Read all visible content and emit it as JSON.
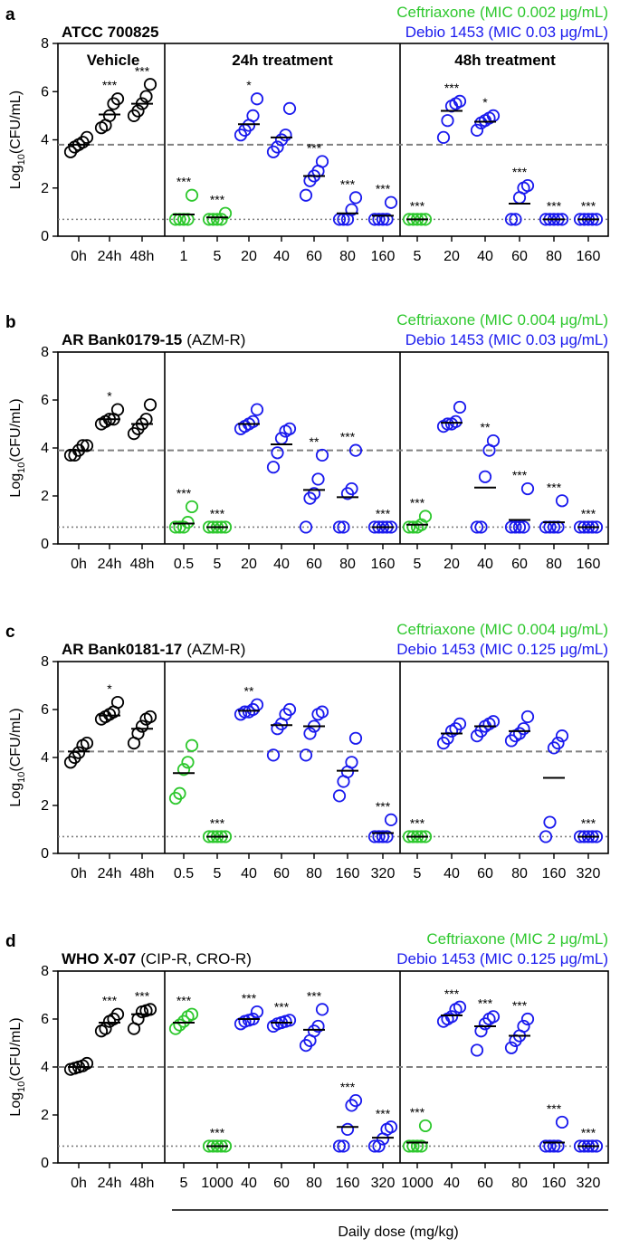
{
  "chart_data": [
    {
      "type": "scatter",
      "panel": "a",
      "strain": "ATCC 700825",
      "strain_note": "",
      "ylabel": "Log10(CFU/mL)",
      "ylim": [
        0,
        8
      ],
      "yticks": [
        "0",
        "2",
        "4",
        "6",
        "8"
      ],
      "legend": [
        "Ceftriaxone (MIC 0.002 μg/mL)",
        "Debio 1453 (MIC 0.03 μg/mL)"
      ],
      "groups": [
        "Vehicle",
        "24h treatment",
        "48h treatment"
      ],
      "baseline": 3.8,
      "lod": 0.7,
      "categories": [
        {
          "label": "0h",
          "series": "vehicle",
          "values": [
            3.5,
            3.7,
            3.8,
            3.9,
            4.1
          ],
          "mean": 3.8,
          "sig": ""
        },
        {
          "label": "24h",
          "series": "vehicle",
          "values": [
            4.5,
            4.6,
            5.0,
            5.5,
            5.7
          ],
          "mean": 5.05,
          "sig": "***"
        },
        {
          "label": "48h",
          "series": "vehicle",
          "values": [
            5.0,
            5.2,
            5.5,
            5.8,
            6.3
          ],
          "mean": 5.5,
          "sig": "***"
        },
        {
          "label": "1",
          "series": "ceftriaxone",
          "values": [
            0.7,
            0.7,
            0.7,
            0.7,
            1.7
          ],
          "mean": 0.9,
          "sig": "***"
        },
        {
          "label": "5",
          "series": "ceftriaxone",
          "values": [
            0.7,
            0.7,
            0.7,
            0.7,
            0.95
          ],
          "mean": 0.78,
          "sig": "***"
        },
        {
          "label": "20",
          "series": "debio",
          "values": [
            4.2,
            4.4,
            4.6,
            5.0,
            5.7
          ],
          "mean": 4.65,
          "sig": "*"
        },
        {
          "label": "40",
          "series": "debio",
          "values": [
            3.5,
            3.7,
            4.0,
            4.2,
            5.3
          ],
          "mean": 4.1,
          "sig": ""
        },
        {
          "label": "60",
          "series": "debio",
          "values": [
            1.7,
            2.3,
            2.5,
            2.7,
            3.1
          ],
          "mean": 2.5,
          "sig": "***"
        },
        {
          "label": "80",
          "series": "debio",
          "values": [
            0.7,
            0.7,
            0.7,
            1.1,
            1.6
          ],
          "mean": 0.95,
          "sig": "***"
        },
        {
          "label": "160",
          "series": "debio",
          "values": [
            0.7,
            0.7,
            0.7,
            0.7,
            1.4
          ],
          "mean": 0.85,
          "sig": "***"
        },
        {
          "label": "5",
          "series": "ceftriaxone",
          "values": [
            0.7,
            0.7,
            0.7,
            0.7,
            0.7
          ],
          "mean": 0.7,
          "sig": "***"
        },
        {
          "label": "20",
          "series": "debio",
          "values": [
            4.1,
            4.8,
            5.4,
            5.5,
            5.6
          ],
          "mean": 5.2,
          "sig": "***"
        },
        {
          "label": "40",
          "series": "debio",
          "values": [
            4.4,
            4.7,
            4.8,
            4.9,
            5.0
          ],
          "mean": 4.75,
          "sig": "*"
        },
        {
          "label": "60",
          "series": "debio",
          "values": [
            0.7,
            0.7,
            1.6,
            2.0,
            2.1
          ],
          "mean": 1.35,
          "sig": "***"
        },
        {
          "label": "80",
          "series": "debio",
          "values": [
            0.7,
            0.7,
            0.7,
            0.7,
            0.7
          ],
          "mean": 0.7,
          "sig": "***"
        },
        {
          "label": "160",
          "series": "debio",
          "values": [
            0.7,
            0.7,
            0.7,
            0.7,
            0.7
          ],
          "mean": 0.7,
          "sig": "***"
        }
      ]
    },
    {
      "type": "scatter",
      "panel": "b",
      "strain": "AR  Bank0179-15",
      "strain_note": "(AZM-R)",
      "ylabel": "Log10(CFU/mL)",
      "ylim": [
        0,
        8
      ],
      "yticks": [
        "0",
        "2",
        "4",
        "6",
        "8"
      ],
      "legend": [
        "Ceftriaxone (MIC 0.004 μg/mL)",
        "Debio 1453 (MIC 0.03 μg/mL)"
      ],
      "groups": [
        "",
        "",
        ""
      ],
      "baseline": 3.9,
      "lod": 0.7,
      "categories": [
        {
          "label": "0h",
          "series": "vehicle",
          "values": [
            3.7,
            3.7,
            3.9,
            4.1,
            4.1
          ],
          "mean": 3.9,
          "sig": ""
        },
        {
          "label": "24h",
          "series": "vehicle",
          "values": [
            5.0,
            5.1,
            5.2,
            5.2,
            5.6
          ],
          "mean": 5.2,
          "sig": "*"
        },
        {
          "label": "48h",
          "series": "vehicle",
          "values": [
            4.6,
            4.8,
            5.0,
            5.2,
            5.8
          ],
          "mean": 5.0,
          "sig": ""
        },
        {
          "label": "0.5",
          "series": "ceftriaxone",
          "values": [
            0.7,
            0.7,
            0.7,
            0.9,
            1.55
          ],
          "mean": 0.85,
          "sig": "***"
        },
        {
          "label": "5",
          "series": "ceftriaxone",
          "values": [
            0.7,
            0.7,
            0.7,
            0.7,
            0.7
          ],
          "mean": 0.7,
          "sig": "***"
        },
        {
          "label": "20",
          "series": "debio",
          "values": [
            4.8,
            4.9,
            5.0,
            5.1,
            5.6
          ],
          "mean": 5.0,
          "sig": ""
        },
        {
          "label": "40",
          "series": "debio",
          "values": [
            3.2,
            3.8,
            4.4,
            4.7,
            4.8
          ],
          "mean": 4.15,
          "sig": ""
        },
        {
          "label": "60",
          "series": "debio",
          "values": [
            0.7,
            1.9,
            2.1,
            2.7,
            3.7
          ],
          "mean": 2.25,
          "sig": "**"
        },
        {
          "label": "80",
          "series": "debio",
          "values": [
            0.7,
            0.7,
            2.1,
            2.3,
            3.9
          ],
          "mean": 1.95,
          "sig": "***"
        },
        {
          "label": "160",
          "series": "debio",
          "values": [
            0.7,
            0.7,
            0.7,
            0.7,
            0.7
          ],
          "mean": 0.7,
          "sig": "***"
        },
        {
          "label": "5",
          "series": "ceftriaxone",
          "values": [
            0.7,
            0.7,
            0.7,
            0.8,
            1.15
          ],
          "mean": 0.8,
          "sig": "***"
        },
        {
          "label": "20",
          "series": "debio",
          "values": [
            4.9,
            5.0,
            5.0,
            5.1,
            5.7
          ],
          "mean": 5.05,
          "sig": ""
        },
        {
          "label": "40",
          "series": "debio",
          "values": [
            0.7,
            0.7,
            2.8,
            3.9,
            4.3
          ],
          "mean": 2.35,
          "sig": "**"
        },
        {
          "label": "60",
          "series": "debio",
          "values": [
            0.7,
            0.7,
            0.7,
            0.7,
            2.3
          ],
          "mean": 1.0,
          "sig": "***"
        },
        {
          "label": "80",
          "series": "debio",
          "values": [
            0.7,
            0.7,
            0.7,
            0.7,
            1.8
          ],
          "mean": 0.9,
          "sig": "***"
        },
        {
          "label": "160",
          "series": "debio",
          "values": [
            0.7,
            0.7,
            0.7,
            0.7,
            0.7
          ],
          "mean": 0.7,
          "sig": "***"
        }
      ]
    },
    {
      "type": "scatter",
      "panel": "c",
      "strain": "AR Bank0181-17",
      "strain_note": "(AZM-R)",
      "ylabel": "Log10(CFU/mL)",
      "ylim": [
        0,
        8
      ],
      "yticks": [
        "0",
        "2",
        "4",
        "6",
        "8"
      ],
      "legend": [
        "Ceftriaxone (MIC 0.004 μg/mL)",
        "Debio 1453 (MIC 0.125 μg/mL)"
      ],
      "groups": [
        "",
        "",
        ""
      ],
      "baseline": 4.25,
      "lod": 0.7,
      "categories": [
        {
          "label": "0h",
          "series": "vehicle",
          "values": [
            3.8,
            4.0,
            4.2,
            4.5,
            4.6
          ],
          "mean": 4.25,
          "sig": ""
        },
        {
          "label": "24h",
          "series": "vehicle",
          "values": [
            5.6,
            5.7,
            5.8,
            5.9,
            6.3
          ],
          "mean": 5.75,
          "sig": "*"
        },
        {
          "label": "48h",
          "series": "vehicle",
          "values": [
            4.6,
            5.0,
            5.3,
            5.6,
            5.7
          ],
          "mean": 5.2,
          "sig": ""
        },
        {
          "label": "0.5",
          "series": "ceftriaxone",
          "values": [
            2.3,
            2.5,
            3.5,
            3.8,
            4.5
          ],
          "mean": 3.35,
          "sig": ""
        },
        {
          "label": "5",
          "series": "ceftriaxone",
          "values": [
            0.7,
            0.7,
            0.7,
            0.7,
            0.7
          ],
          "mean": 0.7,
          "sig": "***"
        },
        {
          "label": "40",
          "series": "debio",
          "values": [
            5.8,
            5.9,
            5.9,
            6.0,
            6.2
          ],
          "mean": 5.95,
          "sig": "**"
        },
        {
          "label": "60",
          "series": "debio",
          "values": [
            4.1,
            5.2,
            5.4,
            5.8,
            6.0
          ],
          "mean": 5.35,
          "sig": ""
        },
        {
          "label": "80",
          "series": "debio",
          "values": [
            4.1,
            5.0,
            5.3,
            5.8,
            5.9
          ],
          "mean": 5.3,
          "sig": ""
        },
        {
          "label": "160",
          "series": "debio",
          "values": [
            2.4,
            3.0,
            3.4,
            3.8,
            4.8
          ],
          "mean": 3.45,
          "sig": ""
        },
        {
          "label": "320",
          "series": "debio",
          "values": [
            0.7,
            0.7,
            0.7,
            0.7,
            1.4
          ],
          "mean": 0.85,
          "sig": "***"
        },
        {
          "label": "5",
          "series": "ceftriaxone",
          "values": [
            0.7,
            0.7,
            0.7,
            0.7,
            0.7
          ],
          "mean": 0.7,
          "sig": "***"
        },
        {
          "label": "40",
          "series": "debio",
          "values": [
            4.6,
            4.8,
            5.1,
            5.2,
            5.4
          ],
          "mean": 5.0,
          "sig": ""
        },
        {
          "label": "60",
          "series": "debio",
          "values": [
            4.9,
            5.1,
            5.3,
            5.4,
            5.5
          ],
          "mean": 5.3,
          "sig": ""
        },
        {
          "label": "80",
          "series": "debio",
          "values": [
            4.7,
            4.9,
            5.0,
            5.2,
            5.7
          ],
          "mean": 5.1,
          "sig": ""
        },
        {
          "label": "160",
          "series": "debio",
          "values": [
            0.7,
            1.3,
            4.4,
            4.6,
            4.9
          ],
          "mean": 3.15,
          "sig": ""
        },
        {
          "label": "320",
          "series": "debio",
          "values": [
            0.7,
            0.7,
            0.7,
            0.7,
            0.7
          ],
          "mean": 0.7,
          "sig": "***"
        }
      ]
    },
    {
      "type": "scatter",
      "panel": "d",
      "strain": "WHO X-07",
      "strain_note": "(CIP-R, CRO-R)",
      "ylabel": "Log10(CFU/mL)",
      "ylim": [
        0,
        8
      ],
      "yticks": [
        "0",
        "2",
        "4",
        "6",
        "8"
      ],
      "legend": [
        "Ceftriaxone (MIC 2 μg/mL)",
        "Debio 1453 (MIC 0.125 μg/mL)"
      ],
      "groups": [
        "",
        "",
        ""
      ],
      "baseline": 4.0,
      "lod": 0.7,
      "xlabel": "Daily dose (mg/kg)",
      "categories": [
        {
          "label": "0h",
          "series": "vehicle",
          "values": [
            3.9,
            3.95,
            4.0,
            4.05,
            4.15
          ],
          "mean": 4.0,
          "sig": ""
        },
        {
          "label": "24h",
          "series": "vehicle",
          "values": [
            5.5,
            5.6,
            5.9,
            6.0,
            6.2
          ],
          "mean": 5.85,
          "sig": "***"
        },
        {
          "label": "48h",
          "series": "vehicle",
          "values": [
            5.6,
            6.0,
            6.3,
            6.35,
            6.4
          ],
          "mean": 6.2,
          "sig": "***"
        },
        {
          "label": "5",
          "series": "ceftriaxone",
          "values": [
            5.6,
            5.75,
            5.9,
            6.1,
            6.2
          ],
          "mean": 5.85,
          "sig": "***"
        },
        {
          "label": "1000",
          "series": "ceftriaxone",
          "values": [
            0.7,
            0.7,
            0.7,
            0.7,
            0.7
          ],
          "mean": 0.7,
          "sig": "***"
        },
        {
          "label": "40",
          "series": "debio",
          "values": [
            5.8,
            5.9,
            5.95,
            6.0,
            6.3
          ],
          "mean": 6.0,
          "sig": "***"
        },
        {
          "label": "60",
          "series": "debio",
          "values": [
            5.7,
            5.8,
            5.85,
            5.9,
            5.95
          ],
          "mean": 5.85,
          "sig": "***"
        },
        {
          "label": "80",
          "series": "debio",
          "values": [
            4.9,
            5.1,
            5.5,
            5.7,
            6.4
          ],
          "mean": 5.55,
          "sig": "***"
        },
        {
          "label": "160",
          "series": "debio",
          "values": [
            0.7,
            0.7,
            1.4,
            2.4,
            2.6
          ],
          "mean": 1.5,
          "sig": "***"
        },
        {
          "label": "320",
          "series": "debio",
          "values": [
            0.7,
            0.7,
            1.0,
            1.4,
            1.5
          ],
          "mean": 1.05,
          "sig": "***"
        },
        {
          "label": "1000",
          "series": "ceftriaxone",
          "values": [
            0.7,
            0.7,
            0.7,
            0.7,
            1.55
          ],
          "mean": 0.85,
          "sig": "***"
        },
        {
          "label": "40",
          "series": "debio",
          "values": [
            5.9,
            6.0,
            6.1,
            6.4,
            6.5
          ],
          "mean": 6.15,
          "sig": "***"
        },
        {
          "label": "60",
          "series": "debio",
          "values": [
            4.7,
            5.5,
            5.8,
            6.0,
            6.1
          ],
          "mean": 5.7,
          "sig": "***"
        },
        {
          "label": "80",
          "series": "debio",
          "values": [
            4.8,
            5.1,
            5.3,
            5.7,
            6.0
          ],
          "mean": 5.3,
          "sig": "***"
        },
        {
          "label": "160",
          "series": "debio",
          "values": [
            0.7,
            0.7,
            0.7,
            0.7,
            1.7
          ],
          "mean": 0.85,
          "sig": "***"
        },
        {
          "label": "320",
          "series": "debio",
          "values": [
            0.7,
            0.7,
            0.7,
            0.7,
            0.7
          ],
          "mean": 0.7,
          "sig": "***"
        }
      ]
    }
  ],
  "colors": {
    "vehicle": "#000000",
    "ceftriaxone": "#2ec82e",
    "debio": "#1a1aee",
    "reference_line": "#808080"
  }
}
